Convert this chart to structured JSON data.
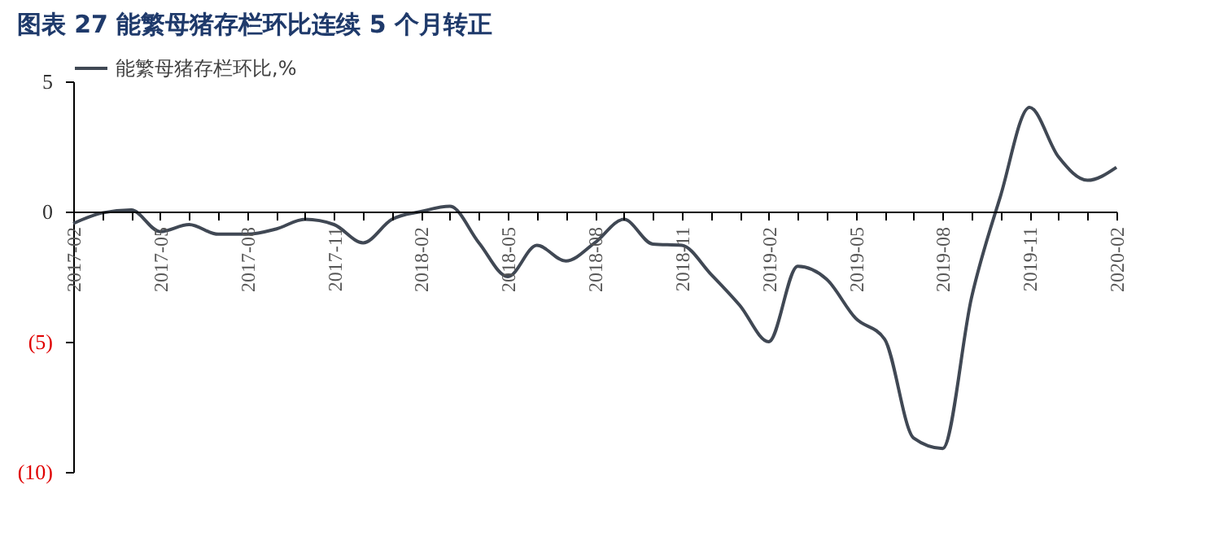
{
  "chart_data": {
    "type": "line",
    "title": "图表 27   能繁母猪存栏环比连续 5 个月转正",
    "categories": [
      "2017-02",
      null,
      null,
      "2017-05",
      null,
      null,
      "2017-08",
      null,
      null,
      "2017-11",
      null,
      null,
      "2018-02",
      null,
      null,
      "2018-05",
      null,
      null,
      "2018-08",
      null,
      null,
      "2018-11",
      null,
      null,
      "2019-02",
      null,
      null,
      "2019-05",
      null,
      null,
      "2019-08",
      null,
      null,
      "2019-11",
      null,
      null,
      "2020-02"
    ],
    "series": [
      {
        "name": "能繁母猪存栏环比,%",
        "color": "#404854",
        "values": [
          -0.46,
          -0.05,
          0.06,
          -0.77,
          -0.5,
          -0.87,
          -0.87,
          -0.67,
          -0.3,
          -0.5,
          -1.2,
          -0.3,
          0,
          0.2,
          -1.2,
          -2.5,
          -1.3,
          -1.9,
          -1.2,
          -0.3,
          -1.25,
          -1.3,
          -2.4,
          -3.6,
          -5.0,
          -2.1,
          -2.6,
          -4.1,
          -4.9,
          -8.7,
          -9.1,
          -3.3,
          0.6,
          4.0,
          2.1,
          1.2,
          1.7
        ]
      }
    ],
    "ylim": [
      -10,
      5
    ],
    "yticks": [
      5,
      0,
      {
        "value": -5,
        "label": "(5)"
      },
      {
        "value": -10,
        "label": "(10)"
      }
    ],
    "legend": "top",
    "grid": false,
    "marker": "none",
    "line_style": "solid"
  }
}
